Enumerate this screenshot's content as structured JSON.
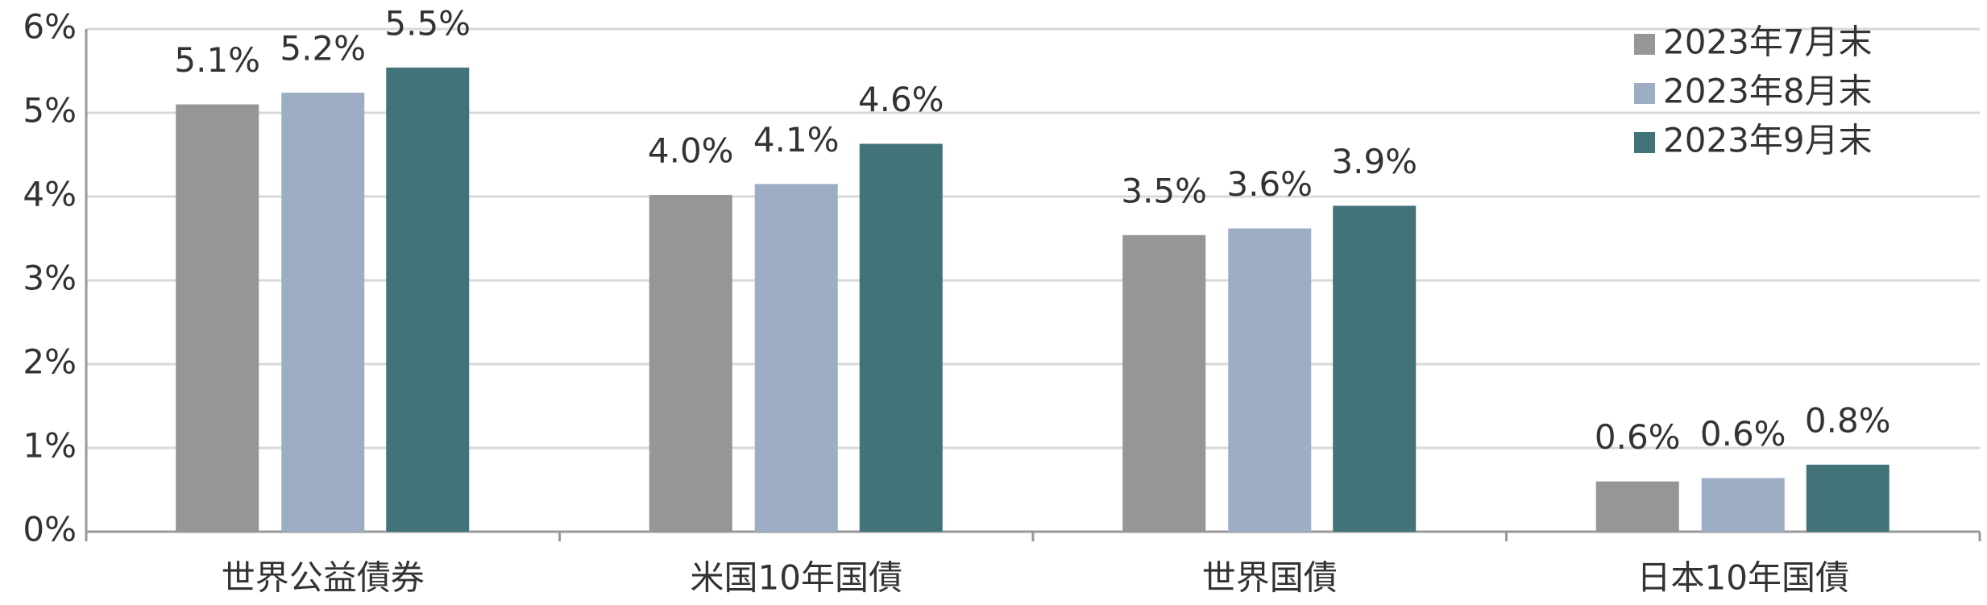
{
  "chart_data": {
    "type": "bar",
    "categories": [
      "世界公益債券",
      "米国10年国債",
      "世界国債",
      "日本10年国債"
    ],
    "series": [
      {
        "name": "2023年7月末",
        "color": "#969696",
        "values": [
          5.1,
          4.02,
          3.54,
          0.6
        ],
        "value_labels": [
          "5.1%",
          "4.0%",
          "3.5%",
          "0.6%"
        ]
      },
      {
        "name": "2023年8月末",
        "color": "#9dadc4",
        "values": [
          5.24,
          4.15,
          3.62,
          0.64
        ],
        "value_labels": [
          "5.2%",
          "4.1%",
          "3.6%",
          "0.6%"
        ]
      },
      {
        "name": "2023年9月末",
        "color": "#417379",
        "values": [
          5.54,
          4.63,
          3.89,
          0.8
        ],
        "value_labels": [
          "5.5%",
          "4.6%",
          "3.9%",
          "0.8%"
        ]
      }
    ],
    "ylim": [
      0,
      6
    ],
    "yticks": [
      {
        "value": 0,
        "label": "0%"
      },
      {
        "value": 1,
        "label": "1%"
      },
      {
        "value": 2,
        "label": "2%"
      },
      {
        "value": 3,
        "label": "3%"
      },
      {
        "value": 4,
        "label": "4%"
      },
      {
        "value": 5,
        "label": "5%"
      },
      {
        "value": 6,
        "label": "6%"
      }
    ],
    "grid": true,
    "legend": "top-right"
  }
}
